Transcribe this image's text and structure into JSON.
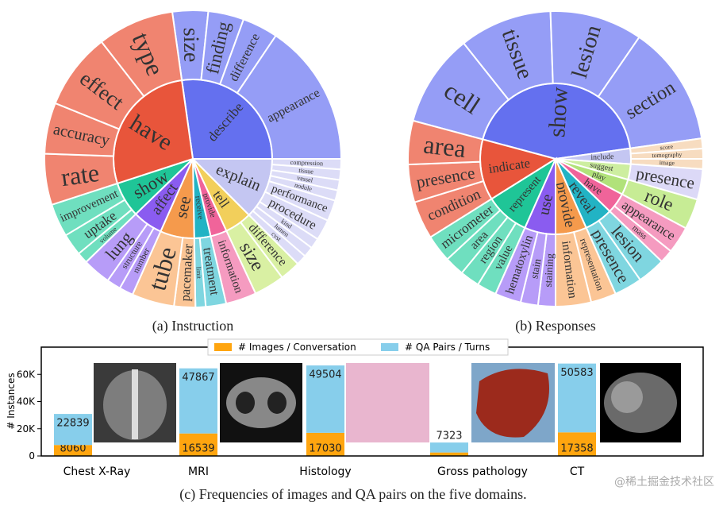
{
  "chart_data": [
    {
      "type": "sunburst",
      "caption": "(a) Instruction",
      "nodes": [
        {
          "label": "describe",
          "color": "#6470ef",
          "outer_color": "#959df6",
          "children": [
            "size",
            "finding",
            "difference",
            "appearance"
          ]
        },
        {
          "label": "explain",
          "color": "#c4c6f2",
          "outer_color": "#dcdcf7",
          "children": [
            "compression",
            "tissue",
            "vessel",
            "nodule",
            "performance",
            "procedure",
            "kind",
            "lumen",
            "cyst"
          ]
        },
        {
          "label": "tell",
          "color": "#f2cf5b",
          "outer_color": "#d9f0a3",
          "children": [
            "difference",
            "size"
          ]
        },
        {
          "label": "provide",
          "color": "#f0649a",
          "outer_color": "#f59bc0",
          "children": [
            "information"
          ]
        },
        {
          "label": "receive",
          "color": "#22b3c4",
          "outer_color": "#7fd6e0",
          "children": [
            "treatment",
            "limit"
          ]
        },
        {
          "label": "see",
          "color": "#f59a4c",
          "outer_color": "#fbc595",
          "children": [
            "pacemaker",
            "tube"
          ]
        },
        {
          "label": "affect",
          "color": "#8a5cf0",
          "outer_color": "#b79cf8",
          "children": [
            "number",
            "structure",
            "lung"
          ]
        },
        {
          "label": "show",
          "color": "#1fc597",
          "outer_color": "#6fdfbf",
          "children": [
            "volume",
            "uptake",
            "improvement"
          ]
        },
        {
          "label": "have",
          "color": "#e8553b",
          "outer_color": "#f08470",
          "children": [
            "rate",
            "accuracy",
            "effect",
            "type"
          ]
        }
      ]
    },
    {
      "type": "sunburst",
      "caption": "(b) Responses",
      "nodes": [
        {
          "label": "show",
          "color": "#6470ef",
          "outer_color": "#959df6",
          "children": [
            "cell",
            "tissue",
            "lesion",
            "section"
          ]
        },
        {
          "label": "include",
          "color": "#c4c6f2",
          "outer_color": "#f7dcc0",
          "children": [
            "score",
            "tomography",
            "image"
          ]
        },
        {
          "label": "suggest",
          "color": "#cdeea0",
          "outer_color": "#dcd9f7",
          "children": [
            "presence"
          ]
        },
        {
          "label": "play",
          "color": "#b1e27a",
          "outer_color": "#c7ec95",
          "children": [
            "role"
          ]
        },
        {
          "label": "have",
          "color": "#f0649a",
          "outer_color": "#f59bc0",
          "children": [
            "appearance",
            "mass"
          ]
        },
        {
          "label": "reveal",
          "color": "#22b3c4",
          "outer_color": "#7fd6e0",
          "children": [
            "lesion",
            "presence"
          ]
        },
        {
          "label": "provide",
          "color": "#f59a4c",
          "outer_color": "#fbc595",
          "children": [
            "representation",
            "information"
          ]
        },
        {
          "label": "use",
          "color": "#8a5cf0",
          "outer_color": "#b79cf8",
          "children": [
            "staining",
            "stain",
            "hematoxylin"
          ]
        },
        {
          "label": "represent",
          "color": "#1fc597",
          "outer_color": "#6fdfbf",
          "children": [
            "value",
            "region",
            "area",
            "micrometer"
          ]
        },
        {
          "label": "indicate",
          "color": "#e8553b",
          "outer_color": "#f08470",
          "children": [
            "condition",
            "presence",
            "area"
          ]
        }
      ]
    },
    {
      "type": "bar",
      "stacked": true,
      "caption": "(c) Frequencies of images and QA pairs on the five domains.",
      "ylabel": "# Instances",
      "categories": [
        "Chest X-Ray",
        "MRI",
        "Histology",
        "Gross pathology",
        "CT"
      ],
      "series": [
        {
          "name": "# Images / Conversation",
          "color": "#ffa50f",
          "values": [
            8060,
            16539,
            17030,
            2552,
            17358
          ]
        },
        {
          "name": "# QA Pairs / Turns",
          "color": "#87ceeb",
          "values": [
            22839,
            47867,
            49504,
            7323,
            50583
          ]
        }
      ],
      "ylim": [
        0,
        80000
      ],
      "yticks": [
        0,
        {
          "value": 20000,
          "label": "20K"
        },
        {
          "value": 40000,
          "label": "40K"
        },
        {
          "value": 60000,
          "label": "60K"
        }
      ],
      "legend": "upper center"
    }
  ],
  "watermark": "@稀土掘金技术社区"
}
